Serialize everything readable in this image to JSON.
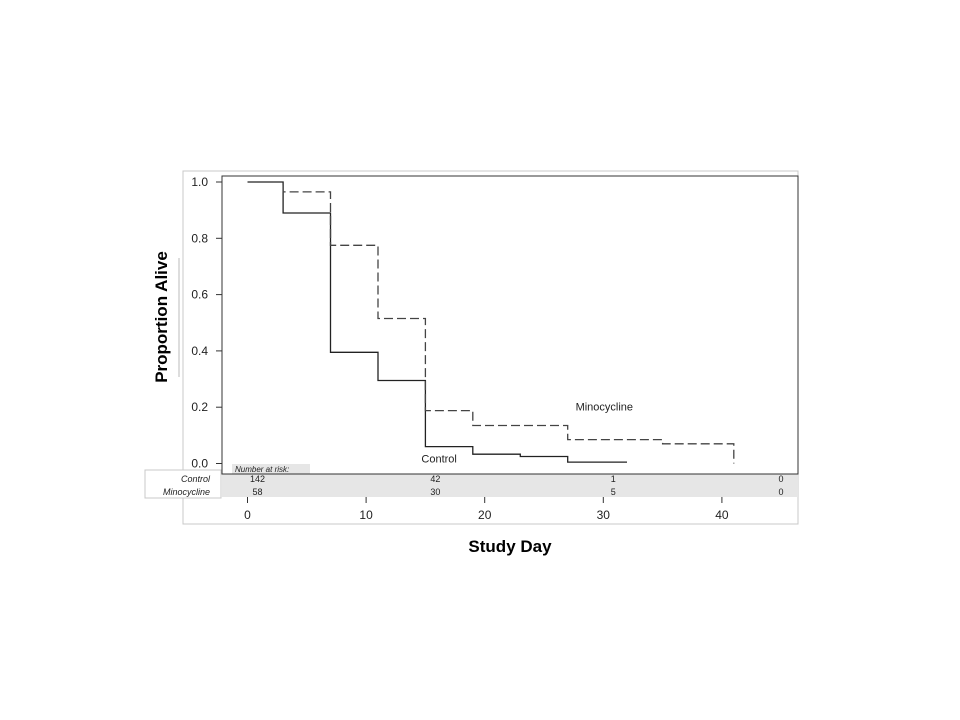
{
  "chart_data": {
    "type": "line",
    "title": "",
    "xlabel": "Study Day",
    "ylabel": "Proportion Alive",
    "xlim": [
      -5,
      46
    ],
    "ylim": [
      0,
      1.0
    ],
    "x_ticks": [
      0,
      10,
      20,
      30,
      40
    ],
    "y_ticks": [
      "0.0",
      "0.2",
      "0.4",
      "0.6",
      "0.8",
      "1.0"
    ],
    "grid": false,
    "legend": "inline labels",
    "series": [
      {
        "name": "Control",
        "style": "solid",
        "color": "#222222",
        "label_at": [
          15,
          0.0
        ],
        "points": [
          [
            0,
            1.0
          ],
          [
            3,
            1.0
          ],
          [
            3,
            0.89
          ],
          [
            7,
            0.89
          ],
          [
            7,
            0.395
          ],
          [
            11,
            0.395
          ],
          [
            11,
            0.295
          ],
          [
            15,
            0.295
          ],
          [
            15,
            0.06
          ],
          [
            19,
            0.06
          ],
          [
            19,
            0.033
          ],
          [
            23,
            0.033
          ],
          [
            23,
            0.025
          ],
          [
            27,
            0.025
          ],
          [
            27,
            0.005
          ],
          [
            32,
            0.005
          ]
        ]
      },
      {
        "name": "Minocycline",
        "style": "dashed",
        "color": "#444444",
        "label_at": [
          28,
          0.1
        ],
        "points": [
          [
            0,
            1.0
          ],
          [
            3,
            1.0
          ],
          [
            3,
            0.965
          ],
          [
            7,
            0.965
          ],
          [
            7,
            0.775
          ],
          [
            11,
            0.775
          ],
          [
            11,
            0.515
          ],
          [
            15,
            0.515
          ],
          [
            15,
            0.188
          ],
          [
            19,
            0.188
          ],
          [
            19,
            0.135
          ],
          [
            27,
            0.135
          ],
          [
            27,
            0.085
          ],
          [
            35,
            0.085
          ],
          [
            35,
            0.07
          ],
          [
            41,
            0.07
          ],
          [
            41,
            0.0
          ]
        ]
      }
    ],
    "risk_table": {
      "title": "Number at risk:",
      "time_points": [
        0,
        15,
        30,
        45
      ],
      "rows": [
        {
          "name": "Control",
          "values": [
            "142",
            "42",
            "1",
            "0"
          ]
        },
        {
          "name": "Minocycline",
          "values": [
            "58",
            "30",
            "5",
            "0"
          ]
        }
      ]
    }
  }
}
